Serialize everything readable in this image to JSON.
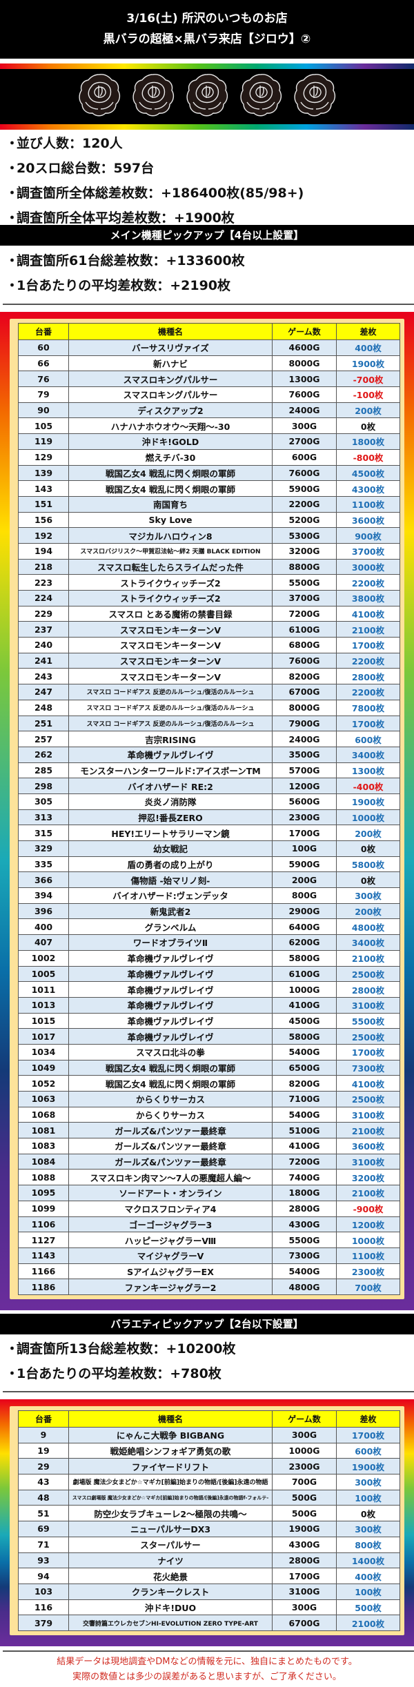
{
  "header": {
    "line1": "3/16(土) 所沢のいつものお店",
    "line2": "黒バラの超極×黒バラ来店【ジロウ】②"
  },
  "banner": {
    "icon": "black-rose-icon",
    "count": 5,
    "rainbow_colors": [
      "#e8001c",
      "#f57a00",
      "#ffe800",
      "#55c21a",
      "#00a870",
      "#00a3e0",
      "#6a2c9a",
      "#102a6a"
    ]
  },
  "stats": [
    {
      "text": "並び人数：120人"
    },
    {
      "text": "20スロ総台数：597台"
    },
    {
      "text": "調査箇所全体総差枚数：+186400枚(85/98+)"
    },
    {
      "text": "調査箇所全体平均差枚数：+1900枚"
    }
  ],
  "main_section": {
    "title": "メイン機種ピックアップ【4台以上設置】",
    "stats": [
      {
        "text": "調査箇所61台総差枚数：+133600枚"
      },
      {
        "text": "1台あたりの平均差枚数：+2190枚"
      }
    ],
    "columns": [
      "台番",
      "機種名",
      "ゲーム数",
      "差枚"
    ],
    "rows": [
      {
        "no": "60",
        "name": "バーサスリヴァイズ",
        "games": "4600G",
        "diff": "400枚"
      },
      {
        "no": "66",
        "name": "新ハナビ",
        "games": "8000G",
        "diff": "1900枚"
      },
      {
        "no": "76",
        "name": "スマスロキングパルサー",
        "games": "1300G",
        "diff": "-700枚"
      },
      {
        "no": "79",
        "name": "スマスロキングパルサー",
        "games": "7600G",
        "diff": "-100枚"
      },
      {
        "no": "90",
        "name": "ディスクアップ2",
        "games": "2400G",
        "diff": "200枚"
      },
      {
        "no": "105",
        "name": "ハナハナホウオウ～天翔～-30",
        "games": "300G",
        "diff": "0枚"
      },
      {
        "no": "119",
        "name": "沖ドキ!GOLD",
        "games": "2700G",
        "diff": "1800枚"
      },
      {
        "no": "129",
        "name": "燃えチバ-30",
        "games": "600G",
        "diff": "-800枚"
      },
      {
        "no": "139",
        "name": "戦国乙女4 戦乱に閃く炯眼の軍師",
        "games": "7600G",
        "diff": "4500枚"
      },
      {
        "no": "143",
        "name": "戦国乙女4 戦乱に閃く炯眼の軍師",
        "games": "5900G",
        "diff": "4300枚"
      },
      {
        "no": "151",
        "name": "南国育ち",
        "games": "2200G",
        "diff": "1100枚"
      },
      {
        "no": "156",
        "name": "Sky Love",
        "games": "5200G",
        "diff": "3600枚"
      },
      {
        "no": "192",
        "name": "マジカルハロウィン8",
        "games": "5300G",
        "diff": "900枚"
      },
      {
        "no": "194",
        "name": "スマスロバジリスク～甲賀忍法帖～絆2 天膳 BLACK EDITION",
        "games": "3200G",
        "diff": "3700枚",
        "size": "small"
      },
      {
        "no": "218",
        "name": "スマスロ転生したらスライムだった件",
        "games": "8800G",
        "diff": "3000枚"
      },
      {
        "no": "223",
        "name": "ストライクウィッチーズ2",
        "games": "5500G",
        "diff": "2200枚"
      },
      {
        "no": "224",
        "name": "ストライクウィッチーズ2",
        "games": "3700G",
        "diff": "3800枚"
      },
      {
        "no": "229",
        "name": "スマスロ とある魔術の禁書目録",
        "games": "7200G",
        "diff": "4100枚"
      },
      {
        "no": "237",
        "name": "スマスロモンキーターンV",
        "games": "6100G",
        "diff": "2100枚"
      },
      {
        "no": "240",
        "name": "スマスロモンキーターンV",
        "games": "6800G",
        "diff": "1700枚"
      },
      {
        "no": "241",
        "name": "スマスロモンキーターンV",
        "games": "7600G",
        "diff": "2200枚"
      },
      {
        "no": "243",
        "name": "スマスロモンキーターンV",
        "games": "8200G",
        "diff": "2800枚"
      },
      {
        "no": "247",
        "name": "スマスロ コードギアス 反逆のルルーシュ/復活のルルーシュ",
        "games": "6700G",
        "diff": "2200枚",
        "size": "small"
      },
      {
        "no": "248",
        "name": "スマスロ コードギアス 反逆のルルーシュ/復活のルルーシュ",
        "games": "8000G",
        "diff": "7800枚",
        "size": "small"
      },
      {
        "no": "251",
        "name": "スマスロ コードギアス 反逆のルルーシュ/復活のルルーシュ",
        "games": "7900G",
        "diff": "1700枚",
        "size": "small"
      },
      {
        "no": "257",
        "name": "吉宗RISING",
        "games": "2400G",
        "diff": "600枚"
      },
      {
        "no": "262",
        "name": "革命機ヴァルヴレイヴ",
        "games": "3500G",
        "diff": "3400枚"
      },
      {
        "no": "285",
        "name": "モンスターハンターワールド:アイスボーンTM",
        "games": "5700G",
        "diff": "1300枚"
      },
      {
        "no": "298",
        "name": "バイオハザード RE:2",
        "games": "1200G",
        "diff": "-400枚"
      },
      {
        "no": "305",
        "name": "炎炎ノ消防隊",
        "games": "5600G",
        "diff": "1900枚"
      },
      {
        "no": "313",
        "name": "押忍!番長ZERO",
        "games": "2300G",
        "diff": "1000枚"
      },
      {
        "no": "315",
        "name": "HEY!エリートサラリーマン鏡",
        "games": "1700G",
        "diff": "200枚"
      },
      {
        "no": "329",
        "name": "幼女戦記",
        "games": "100G",
        "diff": "0枚"
      },
      {
        "no": "335",
        "name": "盾の勇者の成り上がり",
        "games": "5900G",
        "diff": "5800枚"
      },
      {
        "no": "366",
        "name": "傷物語 -始マリノ刻-",
        "games": "200G",
        "diff": "0枚"
      },
      {
        "no": "394",
        "name": "バイオハザード:ヴェンデッタ",
        "games": "800G",
        "diff": "300枚"
      },
      {
        "no": "396",
        "name": "新鬼武者2",
        "games": "2900G",
        "diff": "200枚"
      },
      {
        "no": "400",
        "name": "グランベルム",
        "games": "6400G",
        "diff": "4800枚"
      },
      {
        "no": "407",
        "name": "ワードオブライツⅡ",
        "games": "6200G",
        "diff": "3400枚"
      },
      {
        "no": "1002",
        "name": "革命機ヴァルヴレイヴ",
        "games": "5800G",
        "diff": "2100枚"
      },
      {
        "no": "1005",
        "name": "革命機ヴァルヴレイヴ",
        "games": "6100G",
        "diff": "2500枚"
      },
      {
        "no": "1011",
        "name": "革命機ヴァルヴレイヴ",
        "games": "1000G",
        "diff": "2800枚"
      },
      {
        "no": "1013",
        "name": "革命機ヴァルヴレイヴ",
        "games": "4100G",
        "diff": "3100枚"
      },
      {
        "no": "1015",
        "name": "革命機ヴァルヴレイヴ",
        "games": "4500G",
        "diff": "5500枚"
      },
      {
        "no": "1017",
        "name": "革命機ヴァルヴレイヴ",
        "games": "5800G",
        "diff": "2500枚"
      },
      {
        "no": "1034",
        "name": "スマスロ北斗の拳",
        "games": "5400G",
        "diff": "1700枚"
      },
      {
        "no": "1049",
        "name": "戦国乙女4 戦乱に閃く炯眼の軍師",
        "games": "6500G",
        "diff": "7300枚"
      },
      {
        "no": "1052",
        "name": "戦国乙女4 戦乱に閃く炯眼の軍師",
        "games": "8200G",
        "diff": "4100枚"
      },
      {
        "no": "1063",
        "name": "からくりサーカス",
        "games": "7100G",
        "diff": "2500枚"
      },
      {
        "no": "1068",
        "name": "からくりサーカス",
        "games": "5400G",
        "diff": "3100枚"
      },
      {
        "no": "1081",
        "name": "ガールズ&パンツァー最終章",
        "games": "5100G",
        "diff": "2100枚"
      },
      {
        "no": "1083",
        "name": "ガールズ&パンツァー最終章",
        "games": "4100G",
        "diff": "3600枚"
      },
      {
        "no": "1084",
        "name": "ガールズ&パンツァー最終章",
        "games": "7200G",
        "diff": "3100枚"
      },
      {
        "no": "1088",
        "name": "スマスロキン肉マン～7人の悪魔超人編～",
        "games": "7400G",
        "diff": "3200枚"
      },
      {
        "no": "1095",
        "name": "ソードアート・オンライン",
        "games": "1800G",
        "diff": "2100枚"
      },
      {
        "no": "1099",
        "name": "マクロスフロンティア4",
        "games": "2800G",
        "diff": "-900枚"
      },
      {
        "no": "1106",
        "name": "ゴーゴージャグラー3",
        "games": "4300G",
        "diff": "1200枚"
      },
      {
        "no": "1127",
        "name": "ハッピージャグラーⅧ",
        "games": "5500G",
        "diff": "1000枚"
      },
      {
        "no": "1143",
        "name": "マイジャグラーV",
        "games": "7300G",
        "diff": "1100枚"
      },
      {
        "no": "1166",
        "name": "SアイムジャグラーEX",
        "games": "5400G",
        "diff": "2300枚"
      },
      {
        "no": "1186",
        "name": "ファンキージャグラー2",
        "games": "4800G",
        "diff": "700枚"
      }
    ]
  },
  "variety_section": {
    "title": "バラエティピックアップ【2台以下設置】",
    "stats": [
      {
        "text": "調査箇所13台総差枚数：+10200枚"
      },
      {
        "text": "1台あたりの平均差枚数：+780枚"
      }
    ],
    "columns": [
      "台番",
      "機種名",
      "ゲーム数",
      "差枚"
    ],
    "rows": [
      {
        "no": "9",
        "name": "にゃんこ大戦争 BIGBANG",
        "games": "300G",
        "diff": "1700枚"
      },
      {
        "no": "19",
        "name": "戦姫絶唱シンフォギア勇気の歌",
        "games": "1000G",
        "diff": "600枚"
      },
      {
        "no": "29",
        "name": "ファイヤードリフト",
        "games": "2300G",
        "diff": "1900枚"
      },
      {
        "no": "43",
        "name": "劇場版 魔法少女まどか☆マギカ[前編]始まりの物語/[後編]永遠の物語",
        "games": "700G",
        "diff": "300枚",
        "size": "small"
      },
      {
        "no": "48",
        "name": "スマスロ劇場版 魔法少女まどか☆マギカ[前編]始まりの物語/[後編]永遠の物語f-フォルテ-",
        "games": "500G",
        "diff": "100枚",
        "size": "tiny"
      },
      {
        "no": "51",
        "name": "防空少女ラブキューレ2～極限の共鳴～",
        "games": "500G",
        "diff": "0枚"
      },
      {
        "no": "69",
        "name": "ニューパルサーDX3",
        "games": "1900G",
        "diff": "300枚"
      },
      {
        "no": "71",
        "name": "スターパルサー",
        "games": "4300G",
        "diff": "800枚"
      },
      {
        "no": "93",
        "name": "ナイツ",
        "games": "2800G",
        "diff": "1400枚"
      },
      {
        "no": "94",
        "name": "花火絶景",
        "games": "1700G",
        "diff": "400枚"
      },
      {
        "no": "103",
        "name": "クランキークレスト",
        "games": "3100G",
        "diff": "100枚"
      },
      {
        "no": "116",
        "name": "沖ドキ!DUO",
        "games": "300G",
        "diff": "500枚"
      },
      {
        "no": "379",
        "name": "交響詩篇エウレカセブンHI-EVOLUTION ZERO TYPE-ART",
        "games": "6700G",
        "diff": "2100枚",
        "size": "small"
      }
    ]
  },
  "footer": {
    "line1": "結果データは現地調査やDMなどの情報を元に、独自にまとめたものです。",
    "line2": "実際の数値とは多少の誤差があると思いますが、ご了承ください。"
  },
  "colors": {
    "positive": "#1f6fb5",
    "negative": "#e01515",
    "zero": "#111111",
    "header_yellow": "#ffff00",
    "row_blue": "#dce9f5",
    "frame_inner": "#fde39a",
    "footer_red": "#d02a20"
  }
}
